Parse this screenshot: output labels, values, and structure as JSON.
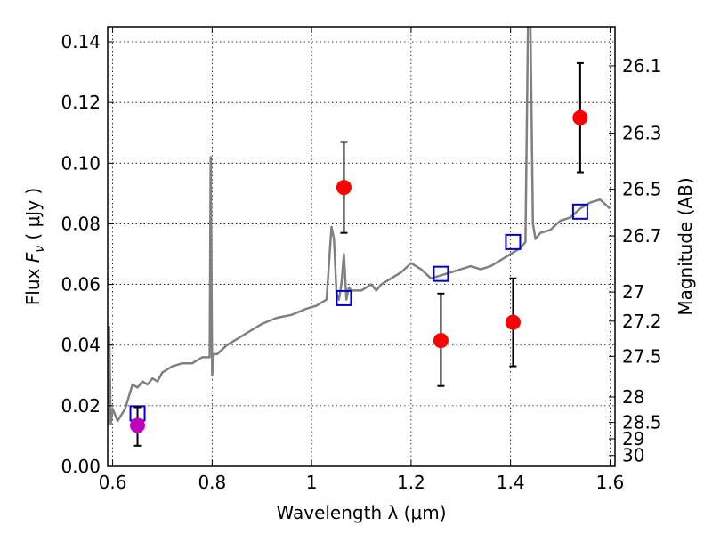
{
  "chart_data": {
    "type": "scatter",
    "xlabel": "Wavelength  λ (μm)",
    "ylabel": "Flux  F_ν  ( μJy )",
    "ylabel_parts": {
      "prefix": "Flux  ",
      "symbol": "F",
      "subscript": "ν",
      "suffix": "  ( μJy )"
    },
    "y2label": "Magnitude (AB)",
    "xlim": [
      0.59,
      1.61
    ],
    "ylim": [
      0.0,
      0.145
    ],
    "grid": true,
    "x_ticks": [
      0.6,
      0.8,
      1.0,
      1.2,
      1.4,
      1.6
    ],
    "x_tick_labels": [
      "0.6",
      "0.8",
      "1",
      "1.2",
      "1.4",
      "1.6"
    ],
    "y_ticks": [
      0.0,
      0.02,
      0.04,
      0.06,
      0.08,
      0.1,
      0.12,
      0.14
    ],
    "y_tick_labels": [
      "0.00",
      "0.02",
      "0.04",
      "0.06",
      "0.08",
      "0.10",
      "0.12",
      "0.14"
    ],
    "y2_ticks": [
      {
        "label": "26.1",
        "flux": 0.1321
      },
      {
        "label": "26.3",
        "flux": 0.1099
      },
      {
        "label": "26.5",
        "flux": 0.0914
      },
      {
        "label": "26.7",
        "flux": 0.076
      },
      {
        "label": "27",
        "flux": 0.0575
      },
      {
        "label": "27.2",
        "flux": 0.0479
      },
      {
        "label": "27.5",
        "flux": 0.0363
      },
      {
        "label": "28",
        "flux": 0.0229
      },
      {
        "label": "28.5",
        "flux": 0.0145
      },
      {
        "label": "29",
        "flux": 0.0091
      },
      {
        "label": "30",
        "flux": 0.0036
      }
    ],
    "series": [
      {
        "kind": "line",
        "color": "#808080",
        "x": [
          0.59,
          0.593,
          0.596,
          0.6,
          0.61,
          0.625,
          0.64,
          0.65,
          0.66,
          0.67,
          0.68,
          0.69,
          0.7,
          0.72,
          0.74,
          0.76,
          0.78,
          0.795,
          0.797,
          0.8,
          0.803,
          0.81,
          0.83,
          0.85,
          0.87,
          0.9,
          0.93,
          0.96,
          0.99,
          1.01,
          1.03,
          1.04,
          1.045,
          1.05,
          1.055,
          1.06,
          1.065,
          1.07,
          1.075,
          1.08,
          1.1,
          1.12,
          1.13,
          1.14,
          1.16,
          1.18,
          1.2,
          1.22,
          1.24,
          1.26,
          1.28,
          1.3,
          1.32,
          1.34,
          1.36,
          1.38,
          1.4,
          1.42,
          1.43,
          1.435,
          1.44,
          1.445,
          1.45,
          1.46,
          1.48,
          1.5,
          1.52,
          1.54,
          1.56,
          1.58,
          1.6
        ],
        "y": [
          0.014,
          0.046,
          0.014,
          0.019,
          0.015,
          0.019,
          0.027,
          0.026,
          0.028,
          0.027,
          0.029,
          0.028,
          0.031,
          0.033,
          0.034,
          0.034,
          0.036,
          0.036,
          0.102,
          0.03,
          0.037,
          0.037,
          0.04,
          0.042,
          0.044,
          0.047,
          0.049,
          0.05,
          0.052,
          0.053,
          0.055,
          0.079,
          0.075,
          0.057,
          0.055,
          0.06,
          0.07,
          0.055,
          0.059,
          0.058,
          0.058,
          0.06,
          0.058,
          0.06,
          0.062,
          0.064,
          0.067,
          0.065,
          0.062,
          0.063,
          0.064,
          0.065,
          0.066,
          0.065,
          0.066,
          0.068,
          0.07,
          0.072,
          0.074,
          0.145,
          0.145,
          0.08,
          0.075,
          0.077,
          0.078,
          0.081,
          0.082,
          0.085,
          0.087,
          0.088,
          0.085
        ]
      },
      {
        "kind": "model-photometry",
        "color": "#0000cc",
        "x": [
          0.65,
          1.065,
          1.26,
          1.405,
          1.54
        ],
        "y": [
          0.0175,
          0.0555,
          0.0635,
          0.074,
          0.084
        ]
      },
      {
        "kind": "observed",
        "color": "#ff0000",
        "x": [
          1.065,
          1.26,
          1.405,
          1.54
        ],
        "y": [
          0.092,
          0.0415,
          0.0475,
          0.115
        ],
        "err_low": [
          0.077,
          0.0265,
          0.033,
          0.097
        ],
        "err_high": [
          0.107,
          0.057,
          0.062,
          0.133
        ]
      },
      {
        "kind": "observed",
        "color": "#bf00bf",
        "x": [
          0.65
        ],
        "y": [
          0.0135
        ],
        "err_low": [
          0.0068
        ],
        "err_high": [
          0.0195
        ]
      }
    ]
  }
}
